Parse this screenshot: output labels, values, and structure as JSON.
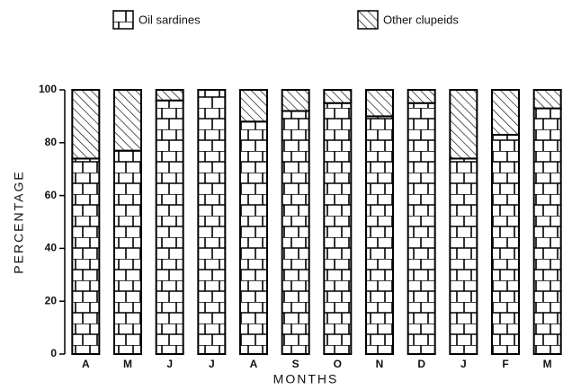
{
  "chart_data": {
    "type": "stacked_bar",
    "categories": [
      "A",
      "M",
      "J",
      "J",
      "A",
      "S",
      "O",
      "N",
      "D",
      "J",
      "F",
      "M"
    ],
    "series": [
      {
        "name": "Oil sardines",
        "color": "#000000",
        "values": [
          74,
          77,
          96,
          100,
          88,
          92,
          95,
          90,
          95,
          74,
          83,
          93
        ]
      },
      {
        "name": "Other clupeids",
        "color": "#000000",
        "values": [
          26,
          23,
          4,
          0,
          12,
          8,
          5,
          10,
          5,
          26,
          17,
          7
        ]
      }
    ],
    "ylabel": "PERCENTAGE",
    "xlabel": "MONTHS",
    "ylim": [
      0,
      100
    ],
    "yticks": [
      0,
      20,
      40,
      60,
      80,
      100
    ]
  }
}
